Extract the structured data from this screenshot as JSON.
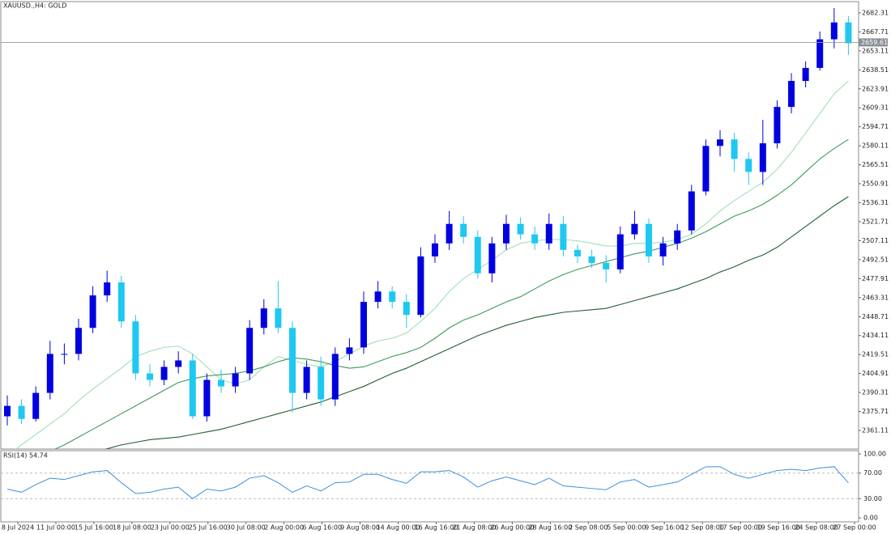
{
  "chart_data": {
    "type": "candlestick",
    "title": "XAUUSD.,H4: GOLD",
    "open": [
      2372,
      2380,
      2370,
      2390,
      2420,
      2420,
      2440,
      2465,
      2475,
      2445,
      2405,
      2400,
      2410,
      2415,
      2372,
      2400,
      2395,
      2405,
      2440,
      2455,
      2440,
      2390,
      2410,
      2385,
      2420,
      2425,
      2460,
      2468,
      2460,
      2450,
      2495,
      2505,
      2520,
      2510,
      2482,
      2505,
      2520,
      2512,
      2505,
      2520,
      2500,
      2495,
      2490,
      2485,
      2512,
      2520,
      2495,
      2505,
      2515,
      2545,
      2580,
      2585,
      2570,
      2560,
      2582,
      2610,
      2630,
      2640,
      2662,
      2675
    ],
    "high": [
      2388,
      2385,
      2395,
      2430,
      2428,
      2447,
      2472,
      2484,
      2480,
      2450,
      2412,
      2415,
      2422,
      2420,
      2405,
      2408,
      2410,
      2446,
      2462,
      2476,
      2445,
      2415,
      2418,
      2425,
      2432,
      2468,
      2476,
      2472,
      2466,
      2502,
      2512,
      2530,
      2526,
      2515,
      2510,
      2527,
      2525,
      2518,
      2528,
      2526,
      2504,
      2500,
      2496,
      2518,
      2530,
      2524,
      2510,
      2520,
      2550,
      2585,
      2592,
      2590,
      2575,
      2600,
      2615,
      2636,
      2645,
      2668,
      2686,
      2680
    ],
    "low": [
      2365,
      2366,
      2368,
      2385,
      2412,
      2415,
      2436,
      2460,
      2440,
      2400,
      2395,
      2396,
      2405,
      2370,
      2368,
      2390,
      2390,
      2400,
      2435,
      2436,
      2375,
      2385,
      2380,
      2380,
      2415,
      2420,
      2455,
      2455,
      2440,
      2448,
      2490,
      2500,
      2505,
      2478,
      2475,
      2500,
      2508,
      2500,
      2500,
      2495,
      2490,
      2486,
      2475,
      2482,
      2508,
      2490,
      2488,
      2500,
      2512,
      2542,
      2572,
      2560,
      2550,
      2550,
      2578,
      2605,
      2625,
      2638,
      2655,
      2650
    ],
    "close": [
      2380,
      2370,
      2390,
      2420,
      2420,
      2440,
      2465,
      2475,
      2445,
      2405,
      2400,
      2410,
      2415,
      2372,
      2400,
      2395,
      2405,
      2440,
      2455,
      2440,
      2390,
      2410,
      2385,
      2420,
      2425,
      2460,
      2468,
      2460,
      2450,
      2495,
      2505,
      2520,
      2510,
      2482,
      2505,
      2520,
      2512,
      2505,
      2520,
      2500,
      2495,
      2490,
      2485,
      2512,
      2520,
      2495,
      2505,
      2515,
      2545,
      2580,
      2585,
      2570,
      2560,
      2582,
      2610,
      2630,
      2640,
      2662,
      2675,
      2659
    ],
    "up_color": "#0000e0",
    "down_color": "#1ec8f0",
    "overlays": [
      {
        "color": "#9fe0b4",
        "values": [
          2342,
          2350,
          2358,
          2366,
          2374,
          2384,
          2393,
          2401,
          2409,
          2418,
          2422,
          2425,
          2426,
          2420,
          2410,
          2400,
          2397,
          2400,
          2410,
          2418,
          2415,
          2412,
          2410,
          2414,
          2420,
          2426,
          2430,
          2432,
          2436,
          2445,
          2455,
          2468,
          2478,
          2485,
          2492,
          2500,
          2505,
          2507,
          2508,
          2508,
          2507,
          2505,
          2503,
          2503,
          2505,
          2505,
          2506,
          2508,
          2512,
          2520,
          2530,
          2538,
          2545,
          2552,
          2562,
          2575,
          2590,
          2605,
          2620,
          2630
        ]
      },
      {
        "color": "#3c9a5c",
        "values": [
          2330,
          2335,
          2340,
          2345,
          2350,
          2356,
          2362,
          2368,
          2374,
          2380,
          2386,
          2392,
          2398,
          2401,
          2403,
          2404,
          2405,
          2407,
          2410,
          2414,
          2417,
          2416,
          2414,
          2411,
          2409,
          2410,
          2414,
          2418,
          2421,
          2425,
          2432,
          2440,
          2446,
          2450,
          2455,
          2460,
          2464,
          2470,
          2476,
          2481,
          2485,
          2488,
          2491,
          2494,
          2497,
          2499,
          2502,
          2505,
          2509,
          2514,
          2520,
          2526,
          2530,
          2535,
          2542,
          2550,
          2560,
          2570,
          2578,
          2585
        ]
      },
      {
        "color": "#1f5e34",
        "values": [
          2325,
          2328,
          2331,
          2334,
          2337,
          2340,
          2343,
          2347,
          2350,
          2352,
          2354,
          2355,
          2356,
          2358,
          2360,
          2362,
          2365,
          2368,
          2371,
          2374,
          2377,
          2380,
          2383,
          2387,
          2391,
          2395,
          2400,
          2405,
          2409,
          2414,
          2419,
          2424,
          2429,
          2434,
          2438,
          2442,
          2445,
          2448,
          2450,
          2452,
          2453,
          2454,
          2455,
          2458,
          2461,
          2464,
          2467,
          2470,
          2474,
          2478,
          2483,
          2487,
          2492,
          2496,
          2502,
          2510,
          2518,
          2526,
          2534,
          2541
        ]
      }
    ],
    "ylim": [
      2346.8,
      2691.0
    ],
    "yticks": [
      2682.31,
      2667.71,
      2653.11,
      2638.51,
      2623.91,
      2609.31,
      2594.71,
      2580.11,
      2565.51,
      2550.91,
      2536.31,
      2521.71,
      2507.11,
      2492.51,
      2477.91,
      2463.31,
      2448.71,
      2434.11,
      2419.51,
      2404.91,
      2390.31,
      2375.71,
      2361.11
    ],
    "current_price": 2659.61,
    "x_labels": [
      "8 Jul 2024",
      "11 Jul 00:00",
      "15 Jul 16:00",
      "18 Jul 08:00",
      "23 Jul 00:00",
      "25 Jul 16:00",
      "30 Jul 08:00",
      "2 Aug 00:00",
      "6 Aug 16:00",
      "9 Aug 08:00",
      "14 Aug 00:00",
      "16 Aug 16:00",
      "21 Aug 08:00",
      "26 Aug 00:00",
      "28 Aug 16:00",
      "2 Sep 08:00",
      "5 Sep 00:00",
      "9 Sep 16:00",
      "12 Sep 08:00",
      "17 Sep 00:00",
      "19 Sep 16:00",
      "24 Sep 08:00",
      "27 Sep 00:00"
    ],
    "rsi": {
      "label": "RSI(14) 54.74",
      "color": "#3d8fe0",
      "values": [
        45,
        40,
        52,
        62,
        60,
        66,
        72,
        74,
        55,
        38,
        40,
        45,
        48,
        30,
        45,
        42,
        48,
        62,
        66,
        55,
        40,
        50,
        42,
        55,
        56,
        68,
        68,
        60,
        54,
        72,
        72,
        74,
        64,
        48,
        58,
        64,
        58,
        52,
        62,
        50,
        48,
        46,
        44,
        56,
        60,
        48,
        52,
        56,
        68,
        80,
        80,
        68,
        62,
        68,
        74,
        76,
        74,
        78,
        80,
        54.74
      ],
      "ylim": [
        -6.3,
        105.1
      ],
      "yticks": [
        {
          "value": 100,
          "label": "100.00"
        },
        {
          "value": 70,
          "label": "70.00"
        },
        {
          "value": 30,
          "label": "30.00"
        },
        {
          "value": 0,
          "label": "0.00"
        }
      ],
      "levels": [
        70,
        30
      ]
    }
  }
}
